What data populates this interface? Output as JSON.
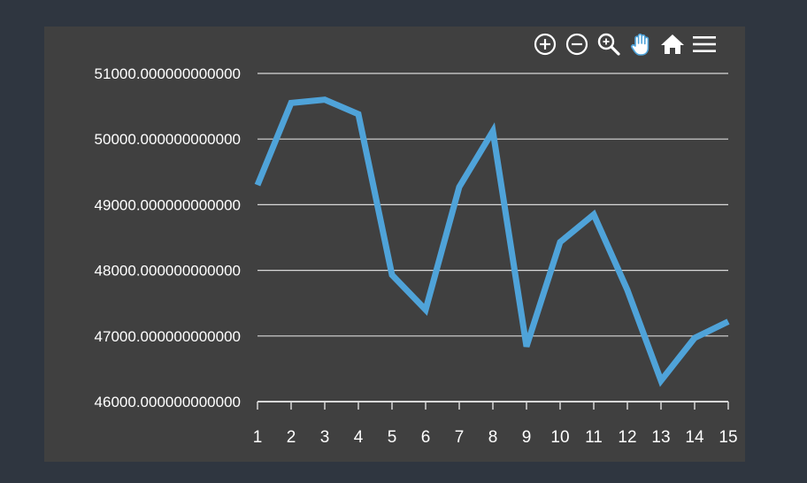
{
  "toolbar": {
    "tools": [
      {
        "name": "zoom-in-icon"
      },
      {
        "name": "zoom-out-icon"
      },
      {
        "name": "magnify-zoom-icon"
      },
      {
        "name": "pan-hand-icon",
        "active": true
      },
      {
        "name": "home-reset-icon"
      },
      {
        "name": "menu-icon"
      }
    ]
  },
  "chart_data": {
    "type": "line",
    "title": "",
    "xlabel": "",
    "ylabel": "",
    "x": [
      1,
      2,
      3,
      4,
      5,
      6,
      7,
      8,
      9,
      10,
      11,
      12,
      13,
      14,
      15
    ],
    "x_tick_labels": [
      "1",
      "2",
      "3",
      "4",
      "5",
      "6",
      "7",
      "8",
      "9",
      "10",
      "11",
      "12",
      "13",
      "14",
      "15"
    ],
    "y_tick_values": [
      46000,
      47000,
      48000,
      49000,
      50000,
      51000
    ],
    "y_tick_labels": [
      "46000.000000000000",
      "47000.000000000000",
      "48000.000000000000",
      "49000.000000000000",
      "50000.000000000000",
      "51000.000000000000"
    ],
    "ylim": [
      46000,
      51000
    ],
    "grid": true,
    "series": [
      {
        "values": [
          49300,
          50550,
          50600,
          50380,
          47930,
          47400,
          49270,
          50120,
          46840,
          48430,
          48850,
          47700,
          46320,
          46970,
          47220
        ],
        "color": "#4fa3d9"
      }
    ],
    "colors": {
      "background": "#404040",
      "page": "#2f3640",
      "grid": "#d9d9d9",
      "text": "#ffffff",
      "pan_active": "#4fa3d9"
    }
  }
}
